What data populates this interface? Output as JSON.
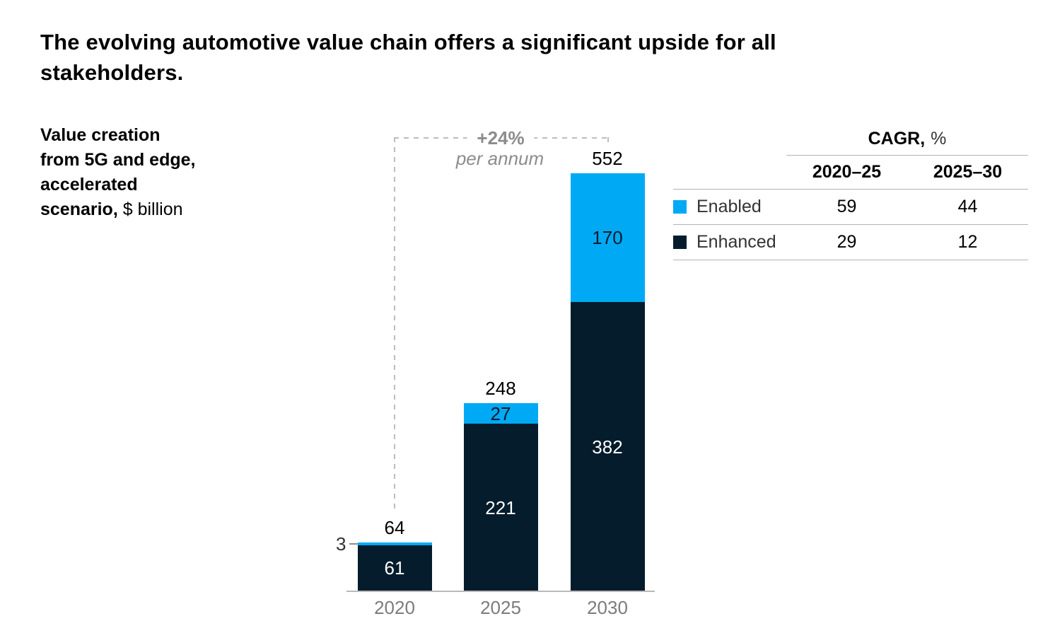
{
  "title": "The evolving automotive value chain offers a significant upside for all stakeholders.",
  "chart_label": {
    "bold": "Value creation\nfrom 5G and edge,\naccelerated\nscenario,",
    "regular": " $ billion"
  },
  "annotation": {
    "growth": "+24%",
    "growth_sub": "per annum"
  },
  "chart_data": {
    "type": "bar",
    "stacked": true,
    "title": "Value creation from 5G and edge, accelerated scenario, $ billion",
    "categories": [
      "2020",
      "2025",
      "2030"
    ],
    "series": [
      {
        "name": "Enhanced",
        "color": "#051c2c",
        "values": [
          61,
          221,
          382
        ]
      },
      {
        "name": "Enabled",
        "color": "#00a9f4",
        "values": [
          3,
          27,
          170
        ]
      }
    ],
    "totals": [
      64,
      248,
      552
    ],
    "annotation": "+24% per annum",
    "ylim": [
      0,
      552
    ],
    "grid": false,
    "legend_position": "table-right"
  },
  "table": {
    "header": {
      "bold": "CAGR,",
      "unit": "%"
    },
    "columns": [
      "2020–25",
      "2025–30"
    ],
    "rows": [
      {
        "legend": "Enabled",
        "color": "#00a9f4",
        "values": [
          "59",
          "44"
        ]
      },
      {
        "legend": "Enhanced",
        "color": "#051c2c",
        "values": [
          "29",
          "12"
        ]
      }
    ]
  },
  "colors": {
    "enabled_blue": "#00a9f4",
    "enhanced_navy": "#051c2c",
    "axis_text_gray": "#7c7c7c",
    "annotation_gray": "#8c8c8c",
    "line_gray": "#b3b3b3"
  }
}
